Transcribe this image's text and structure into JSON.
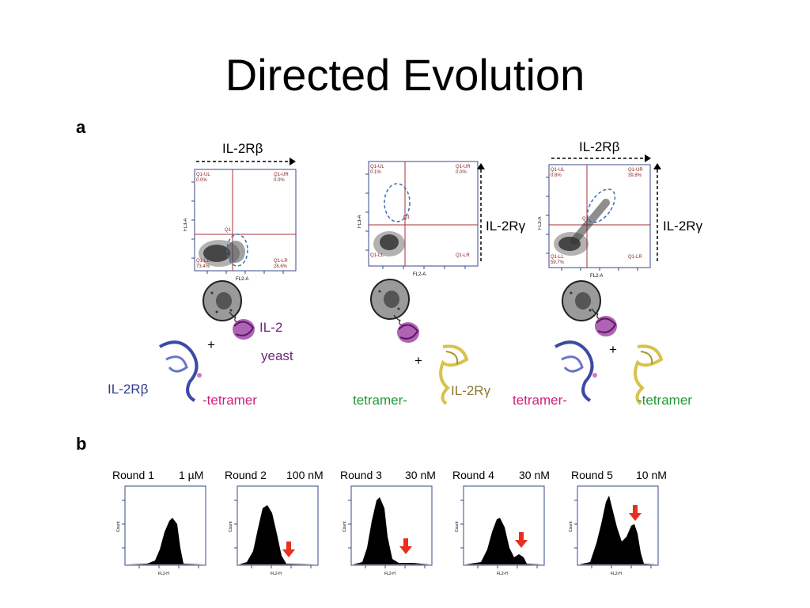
{
  "slide": {
    "title": "Directed Evolution"
  },
  "panel_a": {
    "letter": "a",
    "plots": [
      {
        "top_axis": "IL-2Rβ",
        "side_axis": "",
        "quadrants": {
          "ul": "Q1-UL\n0.0%",
          "ur": "Q1-UR\n0.0%",
          "ll": "Q1-LL\n73.4%",
          "lr": "Q1-LR\n26.6%",
          "gate": "Q1"
        },
        "x_axis": "FL2-A",
        "y_axis": "FL3-A"
      },
      {
        "top_axis": "",
        "side_axis": "IL-2Rγ",
        "quadrants": {
          "ul": "Q1-UL\n0.1%",
          "ur": "Q1-UR\n0.0%",
          "ll": "Q1-LL",
          "lr": "Q1-LR",
          "gate": "Q1"
        },
        "x_axis": "FL2-A",
        "y_axis": "FL3-A"
      },
      {
        "top_axis": "IL-2Rβ",
        "side_axis": "IL-2Rγ",
        "quadrants": {
          "ul": "Q1-UL\n0.8%",
          "ur": "Q1-UR\n39.8%",
          "ll": "Q1-LL\n59.7%",
          "lr": "Q1-LR",
          "gate": "Q1"
        },
        "x_axis": "FL2-A",
        "y_axis": "FL3-A"
      }
    ],
    "labels": {
      "il2": "IL-2",
      "yeast": "yeast",
      "plus": "+",
      "il2rb": "IL-2Rβ",
      "tetramer_pink": "-tetramer",
      "tetramer_green1": "tetramer-",
      "il2rg": "IL-2Rγ",
      "tetramer_pink2": "tetramer-",
      "tetramer_green2": "-tetramer"
    }
  },
  "panel_b": {
    "letter": "b",
    "rounds": [
      {
        "round": "Round 1",
        "conc": "1 µM"
      },
      {
        "round": "Round 2",
        "conc": "100 nM"
      },
      {
        "round": "Round 3",
        "conc": "30 nM"
      },
      {
        "round": "Round 4",
        "conc": "30 nM"
      },
      {
        "round": "Round 5",
        "conc": "10 nM"
      }
    ],
    "x_axis": "FL2-H",
    "y_axis": "Count"
  },
  "colors": {
    "quad_line": "#a8323a",
    "gate": "#3a6fb5",
    "arrow": "#e83020",
    "purple": "#6b2a7a",
    "blue": "#2c3c8c",
    "pink": "#d0217a",
    "green": "#1f9a32",
    "gold": "#d8c24a"
  }
}
